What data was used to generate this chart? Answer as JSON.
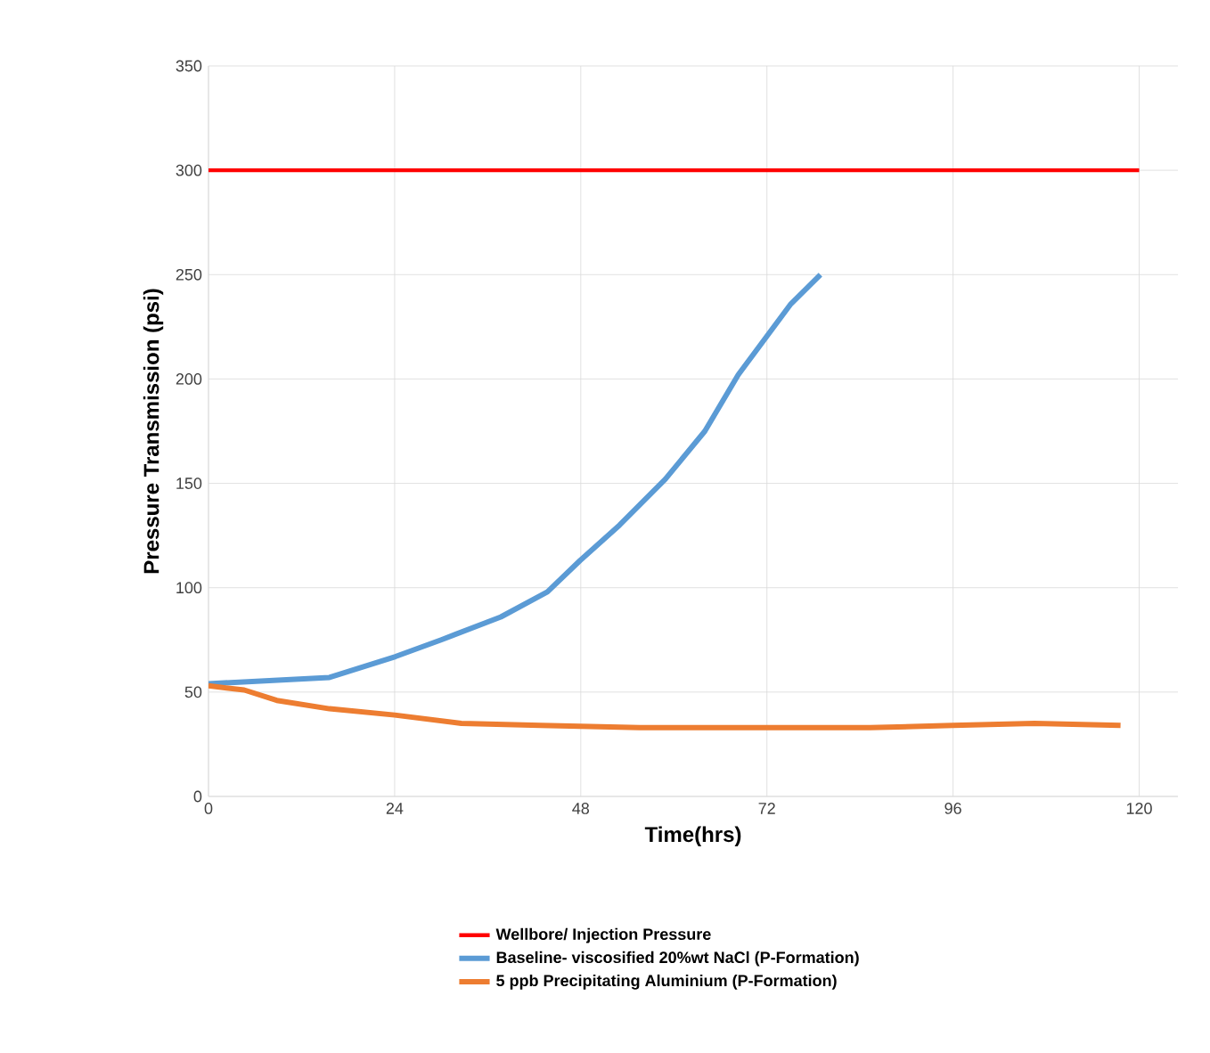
{
  "chart_data": {
    "type": "line",
    "xlabel": "Time(hrs)",
    "ylabel": "Pressure Transmission (psi)",
    "xlim": [
      0,
      125
    ],
    "xticks": [
      0,
      24,
      48,
      72,
      96,
      120
    ],
    "ylim": [
      0,
      350
    ],
    "yticks": [
      0,
      50,
      100,
      150,
      200,
      250,
      300,
      350
    ],
    "grid": true,
    "legend": "bottom",
    "line_style": "solid",
    "series": [
      {
        "name": "Wellbore/ Injection Pressure",
        "color": "#ff0000",
        "x": [
          0,
          120
        ],
        "values": [
          300,
          300
        ]
      },
      {
        "name": "Baseline- viscosified 20%wt NaCl (P-Formation)",
        "color": "#5b9bd5",
        "x": [
          0,
          15.6,
          24.1,
          30,
          37.7,
          43.7,
          47.9,
          53,
          58.9,
          64,
          68.3,
          71.7,
          75.1,
          78.9
        ],
        "values": [
          54,
          57,
          67,
          75,
          86,
          98,
          113,
          130,
          152,
          175,
          202,
          219,
          236,
          250
        ]
      },
      {
        "name": "5 ppb Precipitating Aluminium (P-Formation)",
        "color": "#ed7d31",
        "x": [
          0,
          4.6,
          8.8,
          15.6,
          24,
          32.6,
          42.8,
          55.6,
          71.7,
          85.3,
          96,
          106.5,
          117.6
        ],
        "values": [
          53,
          51,
          46,
          42,
          39,
          35,
          34,
          33,
          33,
          33,
          34,
          35,
          34
        ]
      }
    ]
  }
}
